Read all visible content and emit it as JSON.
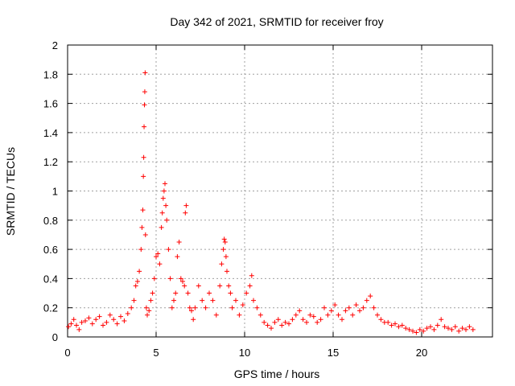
{
  "chart_data": {
    "type": "scatter",
    "title": "Day 342 of 2021, SRMTID for receiver froy",
    "xlabel": "GPS time / hours",
    "ylabel": "SRMTID / TECUs",
    "xlim": [
      0,
      24
    ],
    "ylim": [
      0,
      2
    ],
    "xticks": [
      0,
      5,
      10,
      15,
      20
    ],
    "yticks": [
      0,
      0.2,
      0.4,
      0.6,
      0.8,
      1,
      1.2,
      1.4,
      1.6,
      1.8,
      2
    ],
    "xtick_labels": [
      "0",
      "5",
      "10",
      "15",
      "20"
    ],
    "ytick_labels": [
      "0",
      "0.2",
      "0.4",
      "0.6",
      "0.8",
      "1",
      "1.2",
      "1.4",
      "1.6",
      "1.8",
      "2"
    ],
    "grid": true,
    "marker": "+",
    "color": "#ff0000",
    "series": [
      {
        "name": "SRMTID",
        "x": [
          0.05,
          0.2,
          0.35,
          0.5,
          0.65,
          0.8,
          1.0,
          1.2,
          1.4,
          1.6,
          1.8,
          2.0,
          2.2,
          2.4,
          2.6,
          2.8,
          3.0,
          3.2,
          3.4,
          3.6,
          3.75,
          3.85,
          3.95,
          4.05,
          4.15,
          4.2,
          4.25,
          4.28,
          4.3,
          4.32,
          4.34,
          4.36,
          4.38,
          4.4,
          4.45,
          4.5,
          4.6,
          4.7,
          4.8,
          4.9,
          5.0,
          5.1,
          5.2,
          5.3,
          5.35,
          5.4,
          5.45,
          5.5,
          5.55,
          5.6,
          5.7,
          5.8,
          5.9,
          6.0,
          6.1,
          6.2,
          6.3,
          6.4,
          6.5,
          6.6,
          6.65,
          6.7,
          6.8,
          6.9,
          7.0,
          7.1,
          7.2,
          7.4,
          7.6,
          7.8,
          8.0,
          8.2,
          8.4,
          8.6,
          8.7,
          8.8,
          8.85,
          8.9,
          8.95,
          9.0,
          9.1,
          9.2,
          9.3,
          9.5,
          9.7,
          9.9,
          10.1,
          10.3,
          10.4,
          10.5,
          10.7,
          10.9,
          11.1,
          11.3,
          11.5,
          11.7,
          11.9,
          12.1,
          12.3,
          12.5,
          12.7,
          12.9,
          13.1,
          13.3,
          13.5,
          13.7,
          13.9,
          14.1,
          14.3,
          14.5,
          14.7,
          14.9,
          15.1,
          15.3,
          15.5,
          15.7,
          15.9,
          16.1,
          16.3,
          16.5,
          16.7,
          16.9,
          17.1,
          17.3,
          17.5,
          17.7,
          17.9,
          18.1,
          18.3,
          18.5,
          18.7,
          18.9,
          19.1,
          19.3,
          19.5,
          19.7,
          19.9,
          20.1,
          20.3,
          20.5,
          20.7,
          20.9,
          21.1,
          21.3,
          21.5,
          21.7,
          21.9,
          22.1,
          22.3,
          22.5,
          22.7,
          22.9
        ],
        "y": [
          0.07,
          0.09,
          0.12,
          0.08,
          0.05,
          0.1,
          0.11,
          0.13,
          0.09,
          0.12,
          0.14,
          0.08,
          0.1,
          0.15,
          0.12,
          0.09,
          0.14,
          0.11,
          0.16,
          0.2,
          0.25,
          0.35,
          0.38,
          0.45,
          0.6,
          0.75,
          0.87,
          1.1,
          1.23,
          1.44,
          1.59,
          1.68,
          1.81,
          0.7,
          0.2,
          0.15,
          0.18,
          0.25,
          0.3,
          0.4,
          0.55,
          0.57,
          0.5,
          0.75,
          0.85,
          0.95,
          1.0,
          1.05,
          0.9,
          0.8,
          0.6,
          0.4,
          0.2,
          0.25,
          0.3,
          0.55,
          0.65,
          0.4,
          0.38,
          0.35,
          0.85,
          0.9,
          0.3,
          0.2,
          0.18,
          0.12,
          0.2,
          0.35,
          0.25,
          0.2,
          0.3,
          0.25,
          0.15,
          0.35,
          0.5,
          0.6,
          0.67,
          0.65,
          0.55,
          0.45,
          0.35,
          0.3,
          0.2,
          0.25,
          0.15,
          0.22,
          0.3,
          0.35,
          0.42,
          0.25,
          0.2,
          0.15,
          0.1,
          0.08,
          0.06,
          0.1,
          0.12,
          0.08,
          0.1,
          0.09,
          0.12,
          0.15,
          0.18,
          0.12,
          0.1,
          0.15,
          0.14,
          0.1,
          0.12,
          0.2,
          0.15,
          0.18,
          0.22,
          0.15,
          0.12,
          0.18,
          0.2,
          0.15,
          0.22,
          0.18,
          0.2,
          0.25,
          0.28,
          0.2,
          0.15,
          0.12,
          0.1,
          0.1,
          0.08,
          0.09,
          0.07,
          0.08,
          0.06,
          0.05,
          0.04,
          0.03,
          0.05,
          0.04,
          0.06,
          0.07,
          0.05,
          0.08,
          0.12,
          0.07,
          0.06,
          0.05,
          0.07,
          0.04,
          0.06,
          0.05,
          0.07,
          0.05
        ]
      }
    ]
  }
}
